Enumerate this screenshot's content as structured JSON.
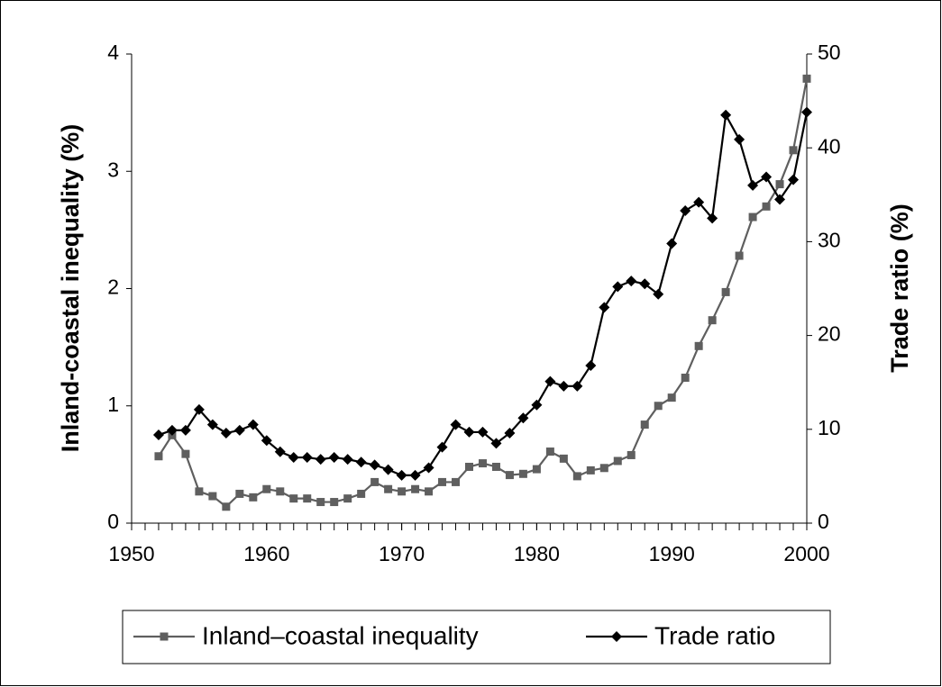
{
  "chart_data": {
    "type": "line",
    "x": [
      1952,
      1953,
      1954,
      1955,
      1956,
      1957,
      1958,
      1959,
      1960,
      1961,
      1962,
      1963,
      1964,
      1965,
      1966,
      1967,
      1968,
      1969,
      1970,
      1971,
      1972,
      1973,
      1974,
      1975,
      1976,
      1977,
      1978,
      1979,
      1980,
      1981,
      1982,
      1983,
      1984,
      1985,
      1986,
      1987,
      1988,
      1989,
      1990,
      1991,
      1992,
      1993,
      1994,
      1995,
      1996,
      1997,
      1998,
      1999,
      2000
    ],
    "series": [
      {
        "name": "Inland–coastal inequality",
        "color": "#5f5f5f",
        "marker": "square",
        "values": [
          0.57,
          0.75,
          0.59,
          0.27,
          0.23,
          0.14,
          0.25,
          0.22,
          0.29,
          0.27,
          0.21,
          0.21,
          0.18,
          0.18,
          0.21,
          0.25,
          0.35,
          0.29,
          0.27,
          0.29,
          0.27,
          0.35,
          0.35,
          0.48,
          0.51,
          0.48,
          0.41,
          0.42,
          0.46,
          0.61,
          0.55,
          0.4,
          0.45,
          0.47,
          0.53,
          0.58,
          0.84,
          1.0,
          1.07,
          1.24,
          1.51,
          1.73,
          1.97,
          2.28,
          2.61,
          2.7,
          2.89,
          3.18,
          3.79
        ]
      },
      {
        "name": "Trade ratio",
        "color": "#000000",
        "marker": "diamond",
        "axis": "y2",
        "values": [
          9.4,
          9.9,
          9.9,
          12.1,
          10.5,
          9.6,
          9.9,
          10.5,
          8.8,
          7.6,
          7.0,
          7.0,
          6.8,
          7.0,
          6.8,
          6.5,
          6.2,
          5.7,
          5.1,
          5.1,
          5.9,
          8.1,
          10.5,
          9.7,
          9.7,
          8.5,
          9.6,
          11.2,
          12.6,
          15.1,
          14.6,
          14.6,
          16.8,
          23.0,
          25.2,
          25.8,
          25.5,
          24.4,
          29.8,
          33.3,
          34.2,
          32.5,
          43.5,
          40.9,
          36.0,
          36.9,
          34.5,
          36.6,
          43.8
        ]
      }
    ],
    "y_label": "Inland-coastal inequality (%)",
    "y2_label": "Trade ratio (%)",
    "xlim": [
      1950,
      2000
    ],
    "xticks": [
      1950,
      1960,
      1970,
      1980,
      1990,
      2000
    ],
    "ylim": [
      0,
      4
    ],
    "yticks": [
      0,
      1,
      2,
      3,
      4
    ],
    "y2lim": [
      0,
      50
    ],
    "y2ticks": [
      0,
      10,
      20,
      30,
      40,
      50
    ],
    "legend": "bottom"
  }
}
